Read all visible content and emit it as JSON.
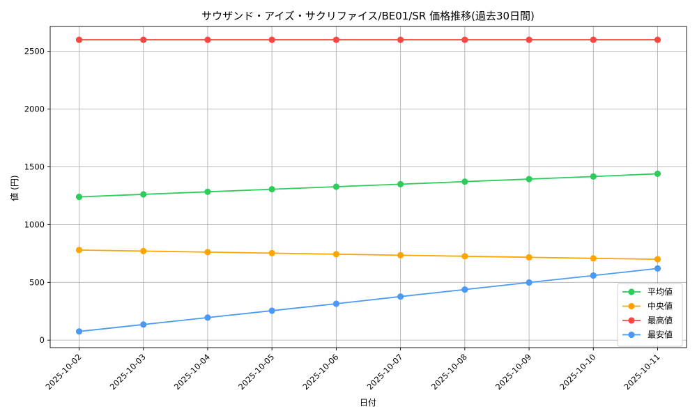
{
  "chart_data": {
    "type": "line",
    "title": "サウザンド・アイズ・サクリファイス/BE01/SR 価格推移(過去30日間)",
    "xlabel": "日付",
    "ylabel": "値 (円)",
    "grid": true,
    "legend_position": "lower-right",
    "ylim": [
      -65,
      2715
    ],
    "y_ticks": [
      0,
      500,
      1000,
      1500,
      2000,
      2500
    ],
    "categories": [
      "2025-10-02",
      "2025-10-03",
      "2025-10-04",
      "2025-10-05",
      "2025-10-06",
      "2025-10-07",
      "2025-10-08",
      "2025-10-09",
      "2025-10-10",
      "2025-10-11"
    ],
    "series": [
      {
        "name": "平均値",
        "color": "#2ecc5a",
        "values": [
          1240,
          1262,
          1284,
          1306,
          1328,
          1350,
          1372,
          1394,
          1416,
          1440
        ]
      },
      {
        "name": "中央値",
        "color": "#ffa500",
        "values": [
          780,
          771,
          762,
          753,
          744,
          735,
          726,
          717,
          708,
          700
        ]
      },
      {
        "name": "最高値",
        "color": "#ff4444",
        "values": [
          2600,
          2600,
          2600,
          2600,
          2600,
          2600,
          2600,
          2600,
          2600,
          2600
        ]
      },
      {
        "name": "最安値",
        "color": "#4a9af5",
        "values": [
          75,
          135,
          195,
          255,
          315,
          377,
          438,
          499,
          559,
          620
        ]
      }
    ]
  }
}
